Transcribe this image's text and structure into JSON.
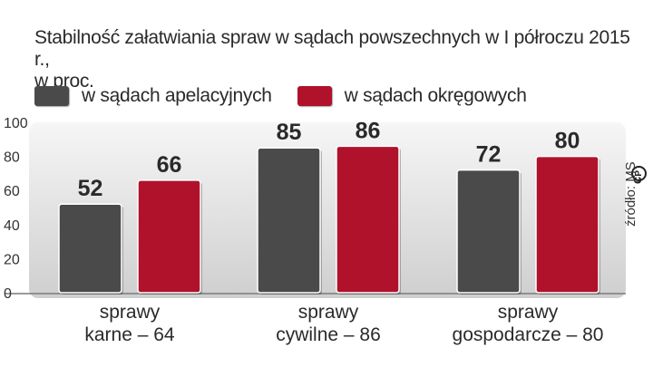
{
  "chart_data": {
    "type": "bar",
    "title": "Stabilność załatwiania spraw w sądach powszechnych w I półroczu 2015 r.,",
    "subtitle": "w proc.",
    "categories": [
      {
        "line1": "sprawy",
        "line2": "karne – 64"
      },
      {
        "line1": "sprawy",
        "line2": "cywilne – 86"
      },
      {
        "line1": "sprawy",
        "line2": "gospodarcze – 80"
      }
    ],
    "series": [
      {
        "name": "w sądach apelacyjnych",
        "color": "#4a4a4a",
        "values": [
          52,
          85,
          72
        ]
      },
      {
        "name": "w sądach okręgowych",
        "color": "#b0112b",
        "values": [
          66,
          86,
          80
        ]
      }
    ],
    "ylim": [
      0,
      100
    ],
    "yticks": [
      0,
      20,
      40,
      60,
      80,
      100
    ],
    "legend": "top-left",
    "grid": false
  },
  "source": "źródło: MS"
}
